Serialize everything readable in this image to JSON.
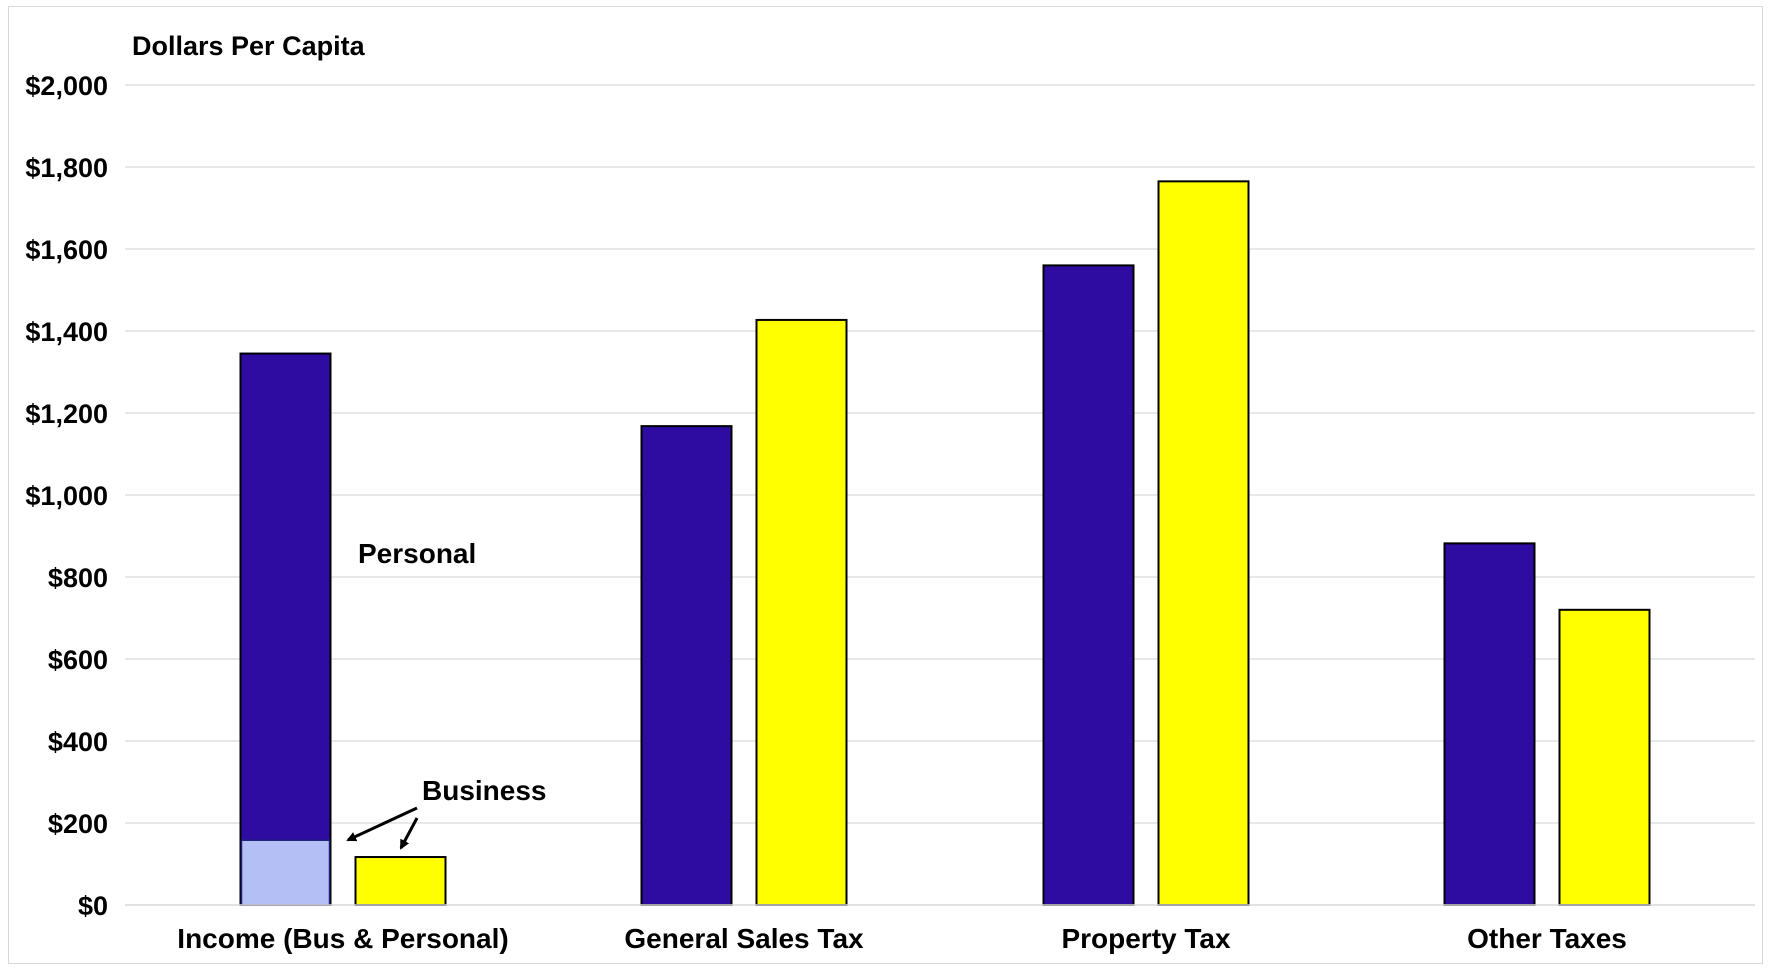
{
  "chart_data": {
    "type": "bar",
    "title": "",
    "ylabel": "Dollars Per Capita",
    "xlabel": "",
    "categories": [
      "Income (Bus & Personal)",
      "General Sales Tax",
      "Property Tax",
      "Other Taxes"
    ],
    "series": [
      {
        "values": [
          1345,
          1168,
          1560,
          882
        ],
        "color": "#2e0ba1"
      },
      {
        "values": [
          117,
          1427,
          1765,
          720
        ],
        "color": "#ffff00"
      }
    ],
    "stacked_segment": {
      "category": "Income (Bus & Personal)",
      "series_index": 0,
      "label": "Business",
      "value": 158,
      "color": "#b4c0f5"
    },
    "annotations": {
      "personal": "Personal",
      "business": "Business"
    },
    "ylim": [
      0,
      2000
    ],
    "yticks": [
      0,
      200,
      400,
      600,
      800,
      1000,
      1200,
      1400,
      1600,
      1800,
      2000
    ],
    "ytick_labels": [
      "$0",
      "$200",
      "$400",
      "$600",
      "$800",
      "$1,000",
      "$1,200",
      "$1,400",
      "$1,600",
      "$1,800",
      "$2,000"
    ],
    "grid": true,
    "legend": "none"
  }
}
